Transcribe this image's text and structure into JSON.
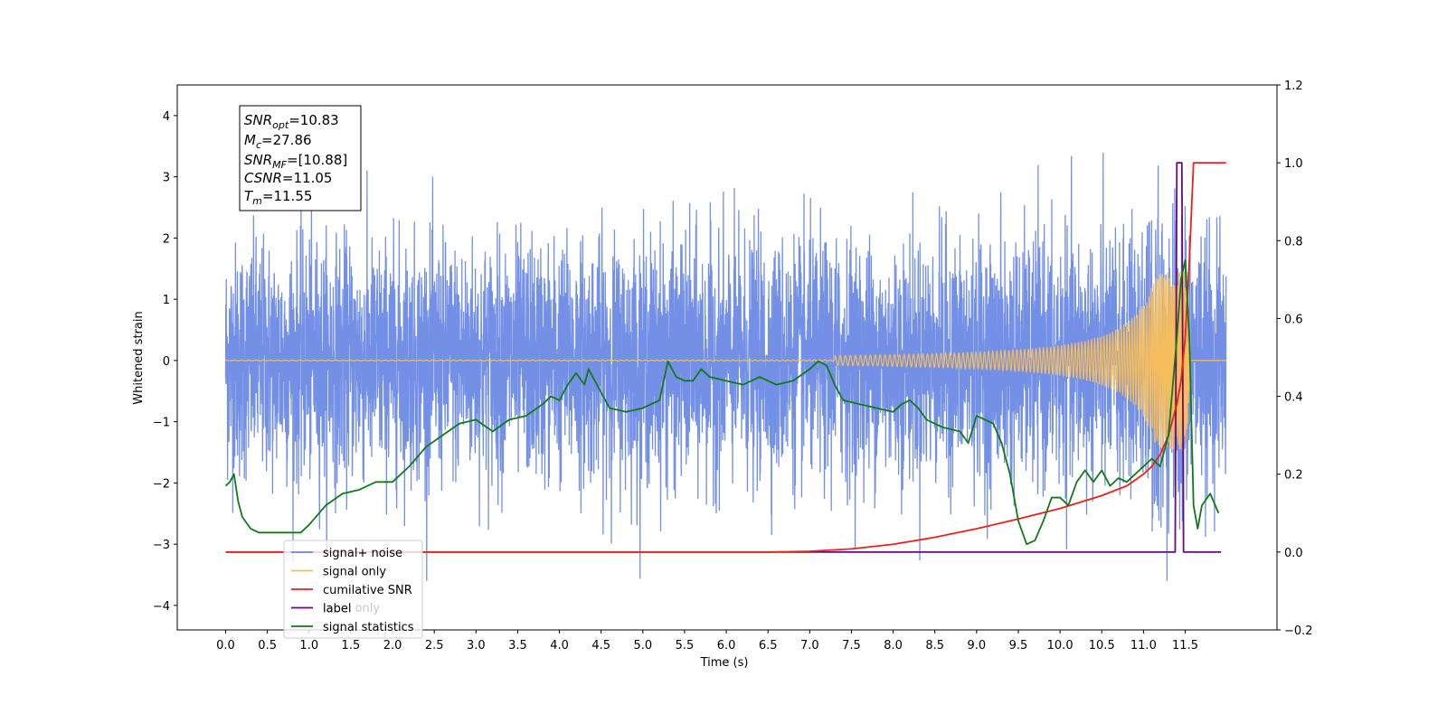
{
  "chart_data": {
    "type": "line",
    "xlabel": "Time (s)",
    "ylabel_left": "Whitened strain",
    "ylabel_right": "",
    "xlim": [
      -0.58,
      12.6
    ],
    "ylim_left": [
      -4.4,
      4.5
    ],
    "ylim_right": [
      -0.2,
      1.2
    ],
    "x_ticks": [
      "0.0",
      "0.5",
      "1.0",
      "1.5",
      "2.0",
      "2.5",
      "3.0",
      "3.5",
      "4.0",
      "4.5",
      "5.0",
      "5.5",
      "6.0",
      "6.5",
      "7.0",
      "7.5",
      "8.0",
      "8.5",
      "9.0",
      "9.5",
      "10.0",
      "10.5",
      "11.0",
      "11.5"
    ],
    "y_ticks_left": [
      "4",
      "3",
      "2",
      "1",
      "0",
      "−1",
      "−2",
      "−3",
      "−4"
    ],
    "y_ticks_right": [
      "1.2",
      "1.0",
      "0.8",
      "0.6",
      "0.4",
      "0.2",
      "0.0",
      "−0.2"
    ],
    "grid": false,
    "legend_position": "lower-left",
    "series": [
      {
        "name": "signal+ noise",
        "color": "#6b8ae5",
        "axis": "left",
        "x_range": [
          0,
          11.99
        ],
        "description": "whitened noise plus signal, amplitude roughly between -3.5 and 4.1"
      },
      {
        "name": "signal only",
        "color": "#f5bd5c",
        "axis": "left",
        "x_range": [
          0,
          11.99
        ],
        "description": "chirp, near zero until ~7.5 s then growing to about ±1.4 at 11.5 s"
      },
      {
        "name": "cumilative SNR",
        "color": "#e8231b",
        "axis": "right",
        "x": [
          0,
          6.5,
          7.0,
          7.5,
          8.0,
          8.5,
          9.0,
          9.5,
          10.0,
          10.5,
          10.8,
          11.0,
          11.1,
          11.2,
          11.3,
          11.4,
          11.45,
          11.5,
          11.55,
          11.6,
          11.7,
          11.8,
          11.99
        ],
        "y": [
          0,
          0,
          0.002,
          0.008,
          0.02,
          0.038,
          0.06,
          0.085,
          0.112,
          0.145,
          0.17,
          0.2,
          0.22,
          0.25,
          0.3,
          0.38,
          0.44,
          0.55,
          0.75,
          1.0,
          1.0,
          1.0,
          1.0
        ]
      },
      {
        "name": "label",
        "color": "#6a0a7a",
        "axis": "right",
        "x": [
          0,
          11.38,
          11.4,
          11.46,
          11.48,
          11.6,
          11.93
        ],
        "y": [
          0,
          0,
          1.0,
          1.0,
          0,
          0,
          0
        ]
      },
      {
        "name": "signal statistics",
        "color": "#117a17",
        "axis": "right",
        "x": [
          0,
          0.05,
          0.1,
          0.15,
          0.2,
          0.3,
          0.4,
          0.5,
          0.7,
          0.9,
          1.0,
          1.2,
          1.4,
          1.6,
          1.8,
          2.0,
          2.2,
          2.4,
          2.6,
          2.8,
          3.0,
          3.2,
          3.4,
          3.6,
          3.8,
          3.9,
          4.0,
          4.1,
          4.2,
          4.3,
          4.35,
          4.4,
          4.5,
          4.6,
          4.8,
          5.0,
          5.1,
          5.2,
          5.3,
          5.4,
          5.5,
          5.6,
          5.7,
          5.8,
          6.0,
          6.2,
          6.4,
          6.5,
          6.6,
          6.8,
          7.0,
          7.1,
          7.2,
          7.3,
          7.4,
          7.6,
          7.8,
          8.0,
          8.1,
          8.2,
          8.3,
          8.4,
          8.6,
          8.8,
          8.9,
          9.0,
          9.2,
          9.3,
          9.4,
          9.5,
          9.6,
          9.7,
          9.8,
          9.9,
          10.0,
          10.1,
          10.2,
          10.3,
          10.4,
          10.5,
          10.6,
          10.7,
          10.8,
          10.9,
          11.0,
          11.1,
          11.2,
          11.3,
          11.4,
          11.45,
          11.5,
          11.55,
          11.6,
          11.65,
          11.7,
          11.8,
          11.9
        ],
        "y": [
          0.17,
          0.18,
          0.2,
          0.13,
          0.09,
          0.06,
          0.05,
          0.05,
          0.05,
          0.05,
          0.07,
          0.12,
          0.15,
          0.16,
          0.18,
          0.18,
          0.22,
          0.27,
          0.3,
          0.33,
          0.34,
          0.31,
          0.34,
          0.35,
          0.38,
          0.4,
          0.39,
          0.43,
          0.46,
          0.43,
          0.47,
          0.45,
          0.41,
          0.37,
          0.36,
          0.37,
          0.38,
          0.39,
          0.49,
          0.45,
          0.44,
          0.44,
          0.47,
          0.45,
          0.44,
          0.43,
          0.45,
          0.44,
          0.43,
          0.44,
          0.47,
          0.49,
          0.48,
          0.43,
          0.39,
          0.38,
          0.37,
          0.36,
          0.38,
          0.39,
          0.37,
          0.34,
          0.32,
          0.31,
          0.28,
          0.35,
          0.33,
          0.28,
          0.2,
          0.08,
          0.02,
          0.03,
          0.08,
          0.14,
          0.14,
          0.12,
          0.18,
          0.21,
          0.18,
          0.21,
          0.17,
          0.19,
          0.18,
          0.2,
          0.22,
          0.24,
          0.22,
          0.3,
          0.55,
          0.7,
          0.75,
          0.55,
          0.12,
          0.06,
          0.12,
          0.15,
          0.1
        ]
      }
    ],
    "annotation": {
      "lines": [
        {
          "sym": "SNR",
          "sub": "opt",
          "value": "=10.83"
        },
        {
          "sym": "M",
          "sub": "c",
          "value": "=27.86"
        },
        {
          "sym": "SNR",
          "sub": "MF",
          "value": "=[10.88]"
        },
        {
          "sym": "CSNR",
          "sub": "",
          "value": "=11.05"
        },
        {
          "sym": "T",
          "sub": "m",
          "value": "=11.55"
        }
      ]
    },
    "legend": [
      "signal+ noise",
      "signal only",
      "cumilative SNR",
      "label",
      "signal statistics"
    ],
    "hidden_legend_text": "label only"
  }
}
